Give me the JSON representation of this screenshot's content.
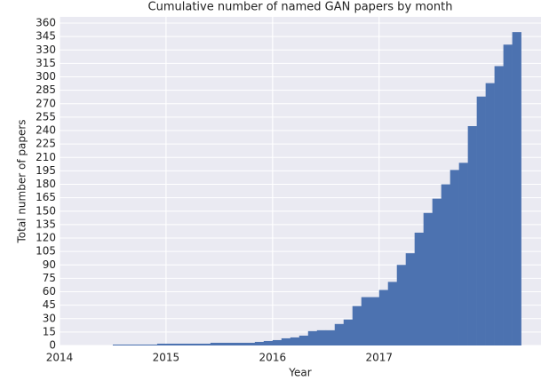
{
  "chart_data": {
    "type": "histogram",
    "title": "Cumulative number of named GAN papers by month",
    "xlabel": "Year",
    "ylabel": "Total number of papers",
    "bins": [
      2014.5,
      2014.5833,
      2014.6667,
      2014.75,
      2014.8333,
      2014.9167,
      2015,
      2015.0833,
      2015.1667,
      2015.25,
      2015.3333,
      2015.4167,
      2015.5,
      2015.5833,
      2015.6667,
      2015.75,
      2015.8333,
      2015.9167,
      2016,
      2016.0833,
      2016.1667,
      2016.25,
      2016.3333,
      2016.4167,
      2016.5,
      2016.5833,
      2016.6667,
      2016.75,
      2016.8333,
      2016.9167,
      2017,
      2017.0833,
      2017.1667,
      2017.25,
      2017.3333,
      2017.4167,
      2017.5,
      2017.5833,
      2017.6667,
      2017.75,
      2017.8333,
      2017.9167,
      2018,
      2018.0833,
      2018.1667,
      2018.25,
      2018.3333
    ],
    "values": [
      1,
      1,
      1,
      1,
      1,
      2,
      2,
      2,
      2,
      2,
      2,
      3,
      3,
      3,
      3,
      3,
      4,
      5,
      6,
      8,
      9,
      11,
      16,
      17,
      17,
      24,
      29,
      44,
      54,
      54,
      62,
      71,
      90,
      103,
      126,
      148,
      164,
      180,
      196,
      204,
      245,
      278,
      293,
      312,
      336,
      350
    ],
    "color": "#4c72b0",
    "xlim": [
      2014,
      2018.52
    ],
    "xticks": [
      2014,
      2015,
      2016,
      2017
    ],
    "ylim": [
      0,
      367
    ],
    "yticks": [
      0,
      15,
      30,
      45,
      60,
      75,
      90,
      105,
      120,
      135,
      150,
      165,
      180,
      195,
      210,
      225,
      240,
      255,
      270,
      285,
      300,
      315,
      330,
      345,
      360
    ],
    "grid": true
  }
}
